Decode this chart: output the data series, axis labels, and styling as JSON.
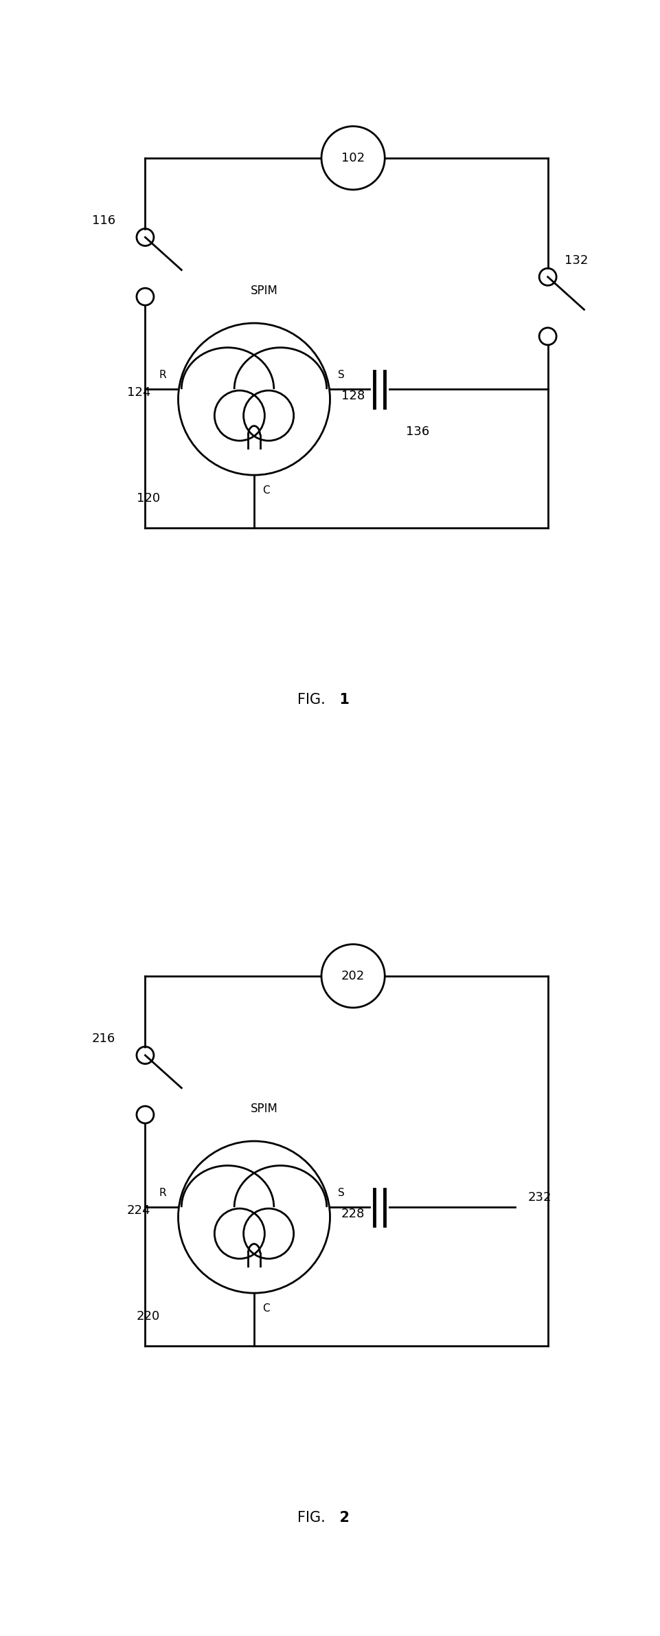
{
  "bg_color": "#ffffff",
  "fig1": {
    "label_text": "FIG.",
    "label_num": "1",
    "source_label": "102",
    "switch_label": "116",
    "switch2_label": "132",
    "motor_label": "SPIM",
    "cap_label": "136",
    "R_label": "R",
    "S_label": "S",
    "C_label": "C",
    "winding_R_label": "124",
    "winding_S_label": "128",
    "motor_circle_label": "120"
  },
  "fig2": {
    "label_text": "FIG.",
    "label_num": "2",
    "source_label": "202",
    "switch_label": "216",
    "cap_label": "232",
    "motor_label": "SPIM",
    "R_label": "R",
    "S_label": "S",
    "C_label": "C",
    "winding_R_label": "224",
    "winding_S_label": "228",
    "motor_circle_label": "220"
  }
}
